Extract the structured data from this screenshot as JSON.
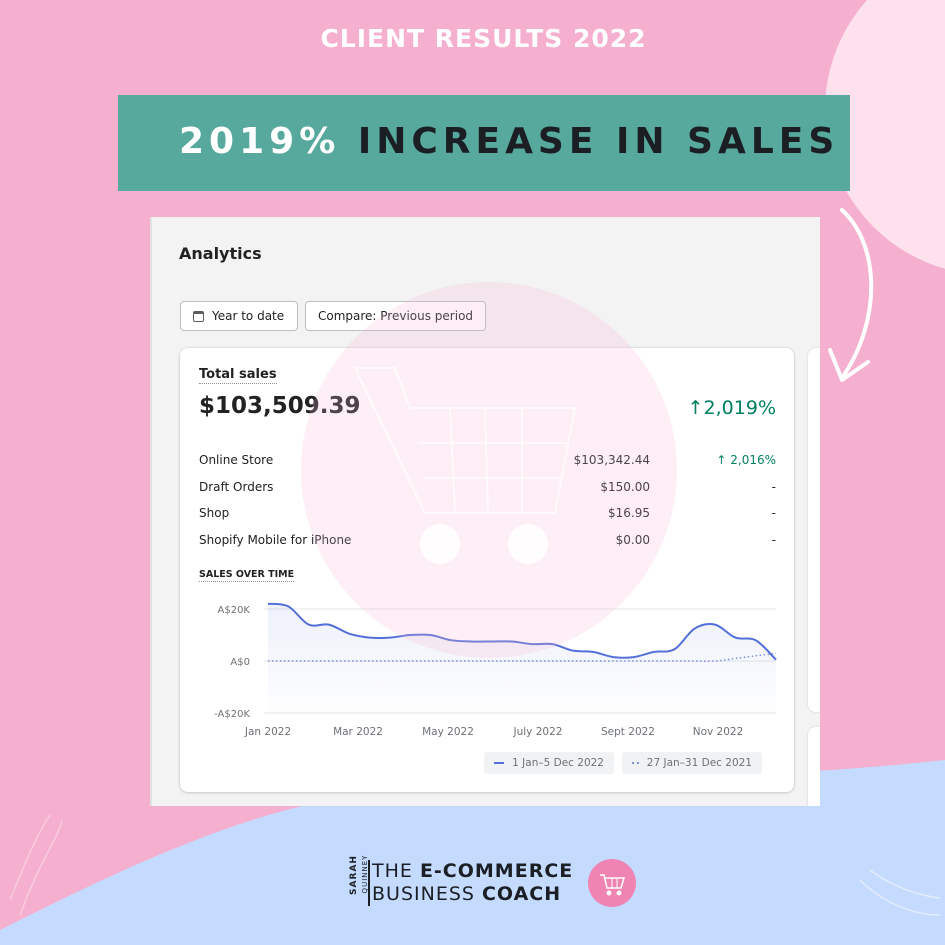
{
  "headline": "CLIENT RESULTS 2022",
  "banner": {
    "percent": "2019%",
    "rest": "INCREASE IN SALES"
  },
  "analytics": {
    "title": "Analytics",
    "date_button": "Year to date",
    "compare_button": "Compare: Previous period",
    "total_sales": {
      "label": "Total sales",
      "value": "$103,509.39",
      "change": "↑2,019%"
    },
    "rows": [
      {
        "name": "Online Store",
        "amount": "$103,342.44",
        "change": "↑ 2,016%"
      },
      {
        "name": "Draft Orders",
        "amount": "$150.00",
        "change": "-"
      },
      {
        "name": "Shop",
        "amount": "$16.95",
        "change": "-"
      },
      {
        "name": "Shopify Mobile for iPhone",
        "amount": "$0.00",
        "change": "-"
      }
    ],
    "sales_over_time_label": "SALES OVER TIME",
    "legend": {
      "current": "1 Jan–5 Dec 2022",
      "previous": "27 Jan–31 Dec 2021"
    }
  },
  "chart_data": {
    "type": "line",
    "title": "SALES OVER TIME",
    "y_ticks": [
      "A$20K",
      "A$0",
      "-A$20K"
    ],
    "ylim": [
      -20000,
      20000
    ],
    "x_ticks": [
      "Jan 2022",
      "Mar 2022",
      "May 2022",
      "July 2022",
      "Sept 2022",
      "Nov 2022"
    ],
    "series": [
      {
        "name": "1 Jan–5 Dec 2022",
        "style": "solid",
        "color": "#5470d8",
        "x": [
          0,
          2,
          4,
          6,
          8,
          10,
          12,
          14,
          16,
          18,
          20,
          22,
          24,
          26,
          28,
          30,
          32,
          34,
          36,
          38,
          40,
          42,
          44,
          46,
          48,
          50
        ],
        "values": [
          22000,
          21000,
          14000,
          14000,
          10500,
          9000,
          9000,
          10000,
          10000,
          8000,
          7500,
          7500,
          7500,
          6500,
          6500,
          4000,
          3500,
          1500,
          1500,
          3500,
          4500,
          12500,
          14000,
          9000,
          8000,
          500
        ]
      },
      {
        "name": "27 Jan–31 Dec 2021",
        "style": "dotted",
        "color": "#7a8fd8",
        "x": [
          0,
          10,
          20,
          30,
          40,
          44,
          46,
          48,
          50
        ],
        "values": [
          0,
          0,
          0,
          0,
          0,
          0,
          1000,
          2000,
          3000
        ]
      }
    ],
    "legend": "bottom-right",
    "grid": true
  },
  "logo": {
    "sarah": "SARAH",
    "quinney": "QUINNEY",
    "line1_a": "THE ",
    "line1_b": "E-COMMERCE",
    "line2_a": "BUSINESS ",
    "line2_b": "COACH"
  },
  "colors": {
    "background_pink": "#f5b0cf",
    "background_blue": "#c4dbff",
    "banner_green": "#56a99c",
    "positive_green": "#008060",
    "line_blue": "#5470d8"
  }
}
